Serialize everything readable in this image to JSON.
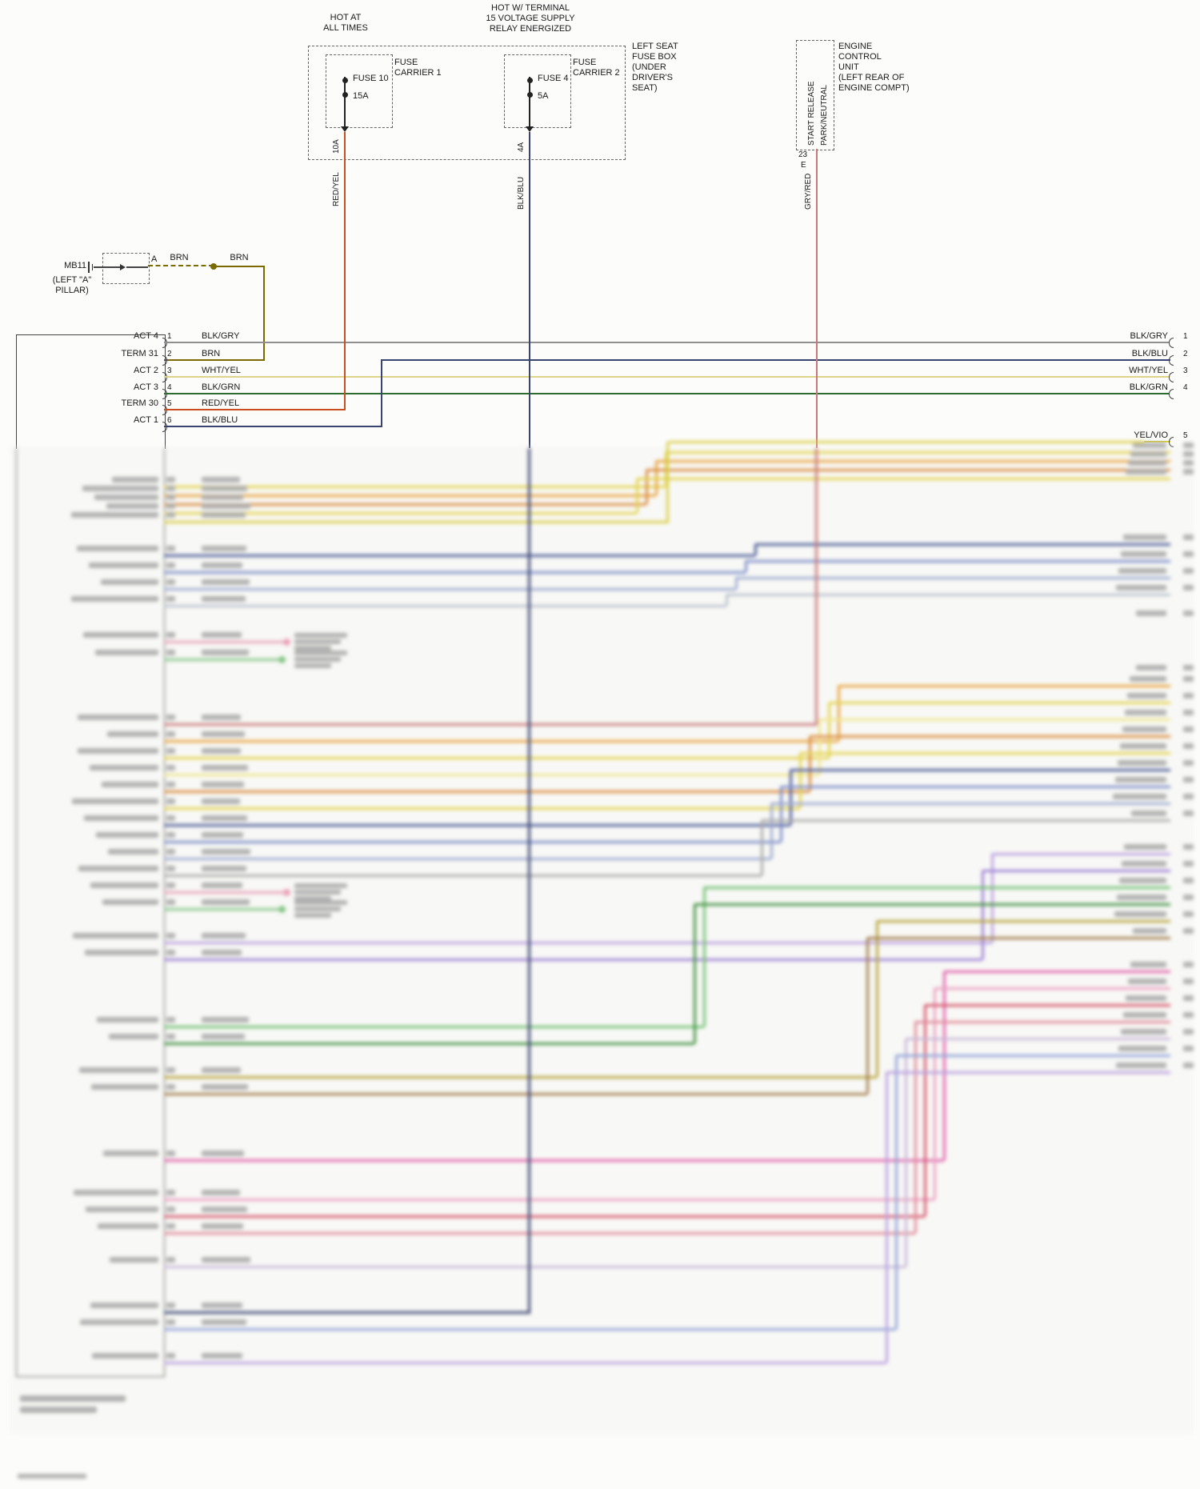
{
  "power": {
    "hot_at_all_times": "HOT AT\nALL TIMES",
    "hot_terminal": "HOT W/ TERMINAL\n15 VOLTAGE SUPPLY\nRELAY ENERGIZED"
  },
  "fuse_box": {
    "label": "LEFT SEAT\nFUSE BOX\n(UNDER\nDRIVER'S\nSEAT)",
    "carrier1": {
      "label": "FUSE\nCARRIER 1",
      "fuse": "FUSE 10",
      "rating": "15A",
      "pin": "10A",
      "wire": "RED/YEL"
    },
    "carrier2": {
      "label": "FUSE\nCARRIER 2",
      "fuse": "FUSE 4",
      "rating": "5A",
      "pin": "4A",
      "wire": "BLK/BLU"
    }
  },
  "ecu": {
    "label": "ENGINE\nCONTROL\nUNIT\n(LEFT REAR OF\nENGINE COMPT)",
    "signal_top": "START RELEASE",
    "signal_bottom": "PARK/NEUTRAL",
    "pin": "23",
    "pin_row": "E",
    "wire": "GRY/RED"
  },
  "ground_point": {
    "name": "MB11",
    "location": "(LEFT \"A\"\nPILLAR)",
    "terminal": "A",
    "wire_segment1": "BRN",
    "wire_segment2": "BRN"
  },
  "left_connector": {
    "pins": [
      {
        "name": "ACT 4",
        "num": "1",
        "wire": "BLK/GRY"
      },
      {
        "name": "TERM 31",
        "num": "2",
        "wire": "BRN"
      },
      {
        "name": "ACT 2",
        "num": "3",
        "wire": "WHT/YEL"
      },
      {
        "name": "ACT 3",
        "num": "4",
        "wire": "BLK/GRN"
      },
      {
        "name": "TERM 30",
        "num": "5",
        "wire": "RED/YEL"
      },
      {
        "name": "ACT 1",
        "num": "6",
        "wire": "BLK/BLU"
      }
    ]
  },
  "right_connector": {
    "pins": [
      {
        "wire": "BLK/GRY",
        "num": "1"
      },
      {
        "wire": "BLK/BLU",
        "num": "2"
      },
      {
        "wire": "WHT/YEL",
        "num": "3"
      },
      {
        "wire": "BLK/GRN",
        "num": "4"
      },
      {
        "wire": "YEL/VIO",
        "num": "5"
      }
    ]
  },
  "colors": {
    "RED_YEL": "#c94f1e",
    "BLK_BLU": "#3a4470",
    "GRY_RED": "#c87878",
    "BRN": "#7a6a00",
    "BLK_GRY": "#8f8f8f",
    "WHT_YEL": "#ddd48a",
    "BLK_GRN": "#2e6b2e",
    "YEL_VIO": "#d9cf4a"
  }
}
